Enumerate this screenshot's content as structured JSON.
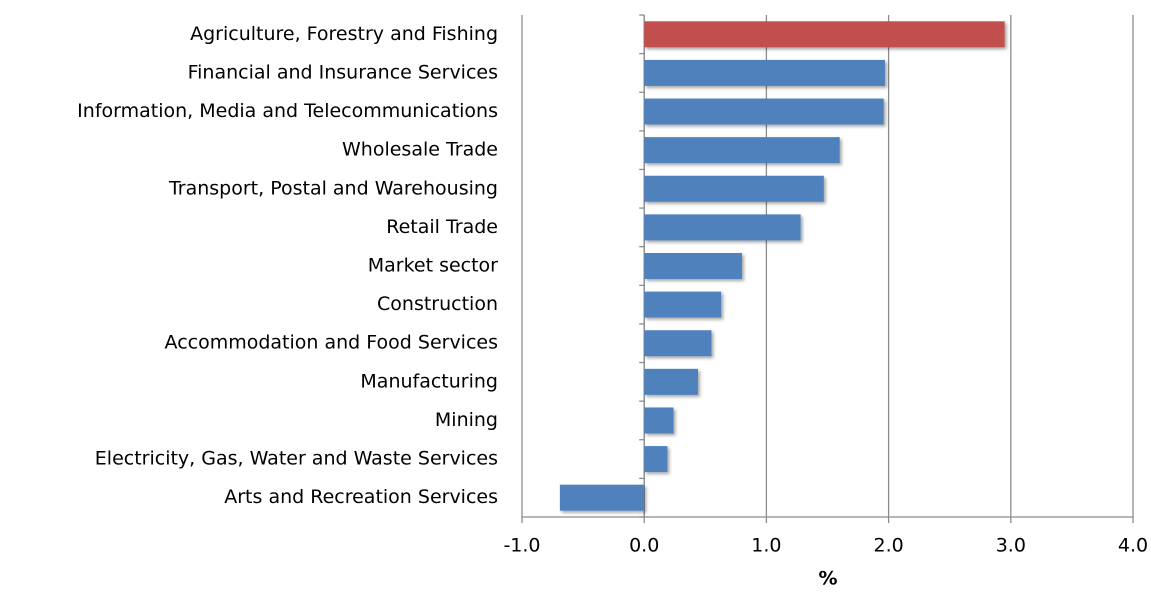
{
  "chart_data": {
    "type": "bar",
    "orientation": "horizontal",
    "categories": [
      "Agriculture, Forestry and Fishing",
      "Financial and Insurance Services",
      "Information, Media and Telecommunications",
      "Wholesale Trade",
      "Transport, Postal and Warehousing",
      "Retail Trade",
      "Market sector",
      "Construction",
      "Accommodation and Food Services",
      "Manufacturing",
      "Mining",
      "Electricity, Gas, Water and Waste Services",
      "Arts and Recreation Services"
    ],
    "values": [
      2.95,
      1.97,
      1.96,
      1.6,
      1.47,
      1.28,
      0.8,
      0.63,
      0.55,
      0.44,
      0.24,
      0.19,
      -0.69
    ],
    "colors": [
      "#c0504d",
      "#4f81bd",
      "#4f81bd",
      "#4f81bd",
      "#4f81bd",
      "#4f81bd",
      "#4f81bd",
      "#4f81bd",
      "#4f81bd",
      "#4f81bd",
      "#4f81bd",
      "#4f81bd",
      "#4f81bd"
    ],
    "xlabel": "%",
    "xlim": [
      -1,
      4
    ],
    "xticks": [
      {
        "value": -1,
        "label": "-1.0"
      },
      {
        "value": 0,
        "label": "0.0"
      },
      {
        "value": 1,
        "label": "1.0"
      },
      {
        "value": 2,
        "label": "2.0"
      },
      {
        "value": 3,
        "label": "3.0"
      },
      {
        "value": 4,
        "label": "4.0"
      }
    ],
    "grid": true
  }
}
